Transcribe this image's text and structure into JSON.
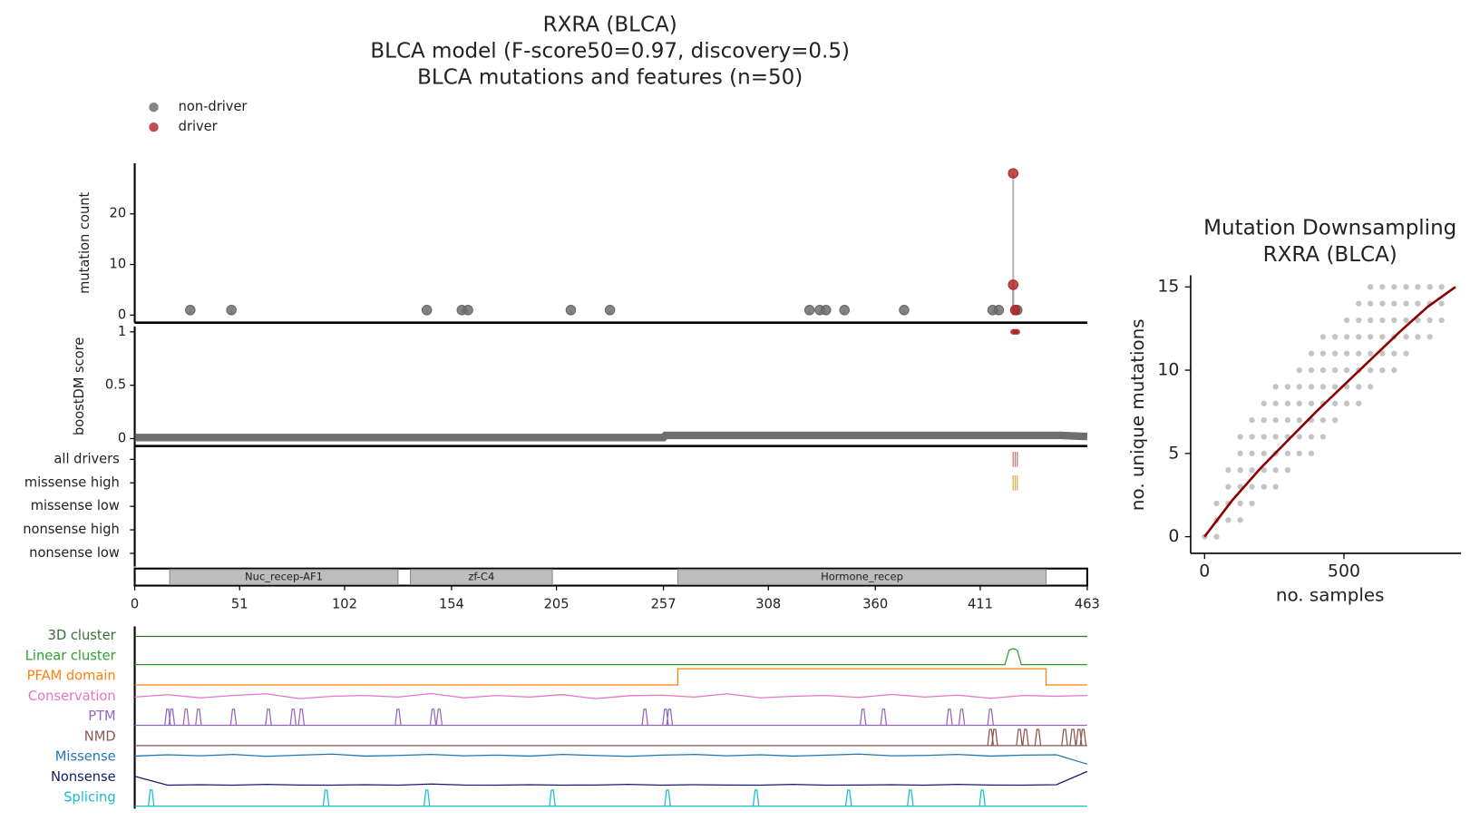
{
  "chart_data": [
    {
      "type": "lollipop",
      "title": [
        "RXRA (BLCA)",
        "BLCA model (F-score50=0.97, discovery=0.5)",
        "BLCA mutations and features (n=50)"
      ],
      "ylabel": "mutation count",
      "ylim": [
        -1.5,
        30
      ],
      "yticks": [
        0,
        10,
        20
      ],
      "series": [
        {
          "name": "non-driver",
          "color": "#666666",
          "x": [
            27,
            47,
            142,
            159,
            162,
            212,
            231,
            328,
            333,
            336,
            345,
            374,
            417,
            420,
            429
          ],
          "values": [
            1,
            1,
            1,
            1,
            1,
            1,
            1,
            1,
            1,
            1,
            1,
            1,
            1,
            1,
            1
          ]
        },
        {
          "name": "driver",
          "color": "#b22222",
          "x": [
            427,
            427,
            428
          ],
          "values": [
            28,
            6,
            1
          ]
        }
      ]
    },
    {
      "type": "strip",
      "ylabel": "boostDM score",
      "ylim": [
        -0.07,
        1.05
      ],
      "yticks": [
        0,
        0.5,
        1
      ],
      "series": [
        {
          "color": "#555555",
          "x": [
            0,
            50,
            100,
            150,
            200,
            257,
            258,
            300,
            350,
            400,
            450,
            463
          ],
          "values": [
            0.01,
            0.01,
            0.01,
            0.01,
            0.01,
            0.01,
            0.03,
            0.03,
            0.03,
            0.03,
            0.03,
            0.02
          ]
        },
        {
          "color": "#b22222",
          "x": [
            427,
            428,
            429
          ],
          "values": [
            1,
            1,
            1
          ]
        }
      ]
    },
    {
      "type": "events",
      "rows": [
        {
          "label": "all drivers",
          "color": "#c0787a",
          "x": [
            427,
            428,
            429
          ]
        },
        {
          "label": "missense high",
          "color": "#d9b04f",
          "x": [
            427,
            428,
            429
          ]
        },
        {
          "label": "missense low",
          "color": "#d9b04f",
          "x": []
        },
        {
          "label": "nonsense high",
          "color": "#7a7ac0",
          "x": []
        },
        {
          "label": "nonsense low",
          "color": "#7a7ac0",
          "x": []
        }
      ]
    },
    {
      "type": "domains",
      "xlim": [
        0,
        463
      ],
      "xticks": [
        0,
        51,
        102,
        154,
        205,
        257,
        308,
        360,
        411,
        463
      ],
      "domains": [
        {
          "name": "Nuc_recep-AF1",
          "start": 17,
          "end": 128
        },
        {
          "name": "zf-C4",
          "start": 134,
          "end": 203
        },
        {
          "name": "Hormone_recep",
          "start": 264,
          "end": 443
        }
      ]
    },
    {
      "type": "tracks",
      "tracks": [
        {
          "label": "3D cluster",
          "color": "#3a6b35",
          "x": [
            0,
            463
          ],
          "values": [
            0.5,
            0.5
          ]
        },
        {
          "label": "Linear cluster",
          "color": "#2ca02c",
          "x": [
            0,
            423,
            425,
            427,
            429,
            431,
            463
          ],
          "values": [
            0,
            0,
            0.9,
            1,
            0.9,
            0,
            0
          ]
        },
        {
          "label": "PFAM domain",
          "color": "#ff7f0e",
          "x": [
            0,
            264,
            264,
            443,
            443,
            463
          ],
          "values": [
            0,
            0,
            1,
            1,
            0,
            0
          ]
        },
        {
          "label": "Conservation",
          "color": "#e377c2",
          "x": [
            0,
            16,
            32,
            48,
            64,
            80,
            96,
            112,
            128,
            144,
            160,
            176,
            192,
            208,
            224,
            240,
            256,
            272,
            288,
            304,
            320,
            336,
            352,
            368,
            384,
            400,
            416,
            432,
            448,
            463
          ],
          "values": [
            0.5,
            0.65,
            0.45,
            0.6,
            0.7,
            0.4,
            0.55,
            0.6,
            0.5,
            0.72,
            0.45,
            0.6,
            0.5,
            0.65,
            0.4,
            0.58,
            0.62,
            0.5,
            0.7,
            0.45,
            0.55,
            0.6,
            0.48,
            0.66,
            0.5,
            0.62,
            0.42,
            0.6,
            0.55,
            0.6
          ]
        },
        {
          "label": "PTM",
          "color": "#9467bd",
          "spikes": [
            16,
            18,
            25,
            31,
            48,
            65,
            77,
            81,
            128,
            145,
            148,
            248,
            258,
            260,
            354,
            364,
            396,
            402,
            416
          ]
        },
        {
          "label": "NMD",
          "color": "#8c564b",
          "spikes": [
            416,
            418,
            430,
            433,
            439,
            452,
            456,
            459,
            461
          ]
        },
        {
          "label": "Missense",
          "color": "#1f77b4",
          "x": [
            0,
            16,
            32,
            48,
            64,
            80,
            96,
            112,
            128,
            144,
            160,
            176,
            192,
            208,
            224,
            240,
            256,
            272,
            288,
            304,
            320,
            336,
            352,
            368,
            384,
            400,
            416,
            432,
            448,
            463
          ],
          "values": [
            0.6,
            0.68,
            0.62,
            0.7,
            0.58,
            0.66,
            0.72,
            0.6,
            0.64,
            0.7,
            0.62,
            0.66,
            0.6,
            0.7,
            0.64,
            0.58,
            0.66,
            0.7,
            0.62,
            0.68,
            0.6,
            0.66,
            0.72,
            0.62,
            0.64,
            0.7,
            0.6,
            0.66,
            0.68,
            0.1
          ]
        },
        {
          "label": "Nonsense",
          "color": "#1a1a6e",
          "x": [
            0,
            16,
            32,
            48,
            64,
            80,
            96,
            112,
            128,
            144,
            160,
            176,
            192,
            208,
            224,
            240,
            256,
            272,
            288,
            304,
            320,
            336,
            352,
            368,
            384,
            400,
            416,
            432,
            448,
            463
          ],
          "values": [
            0.6,
            0.05,
            0.08,
            0.05,
            0.1,
            0.06,
            0.05,
            0.08,
            0.05,
            0.12,
            0.06,
            0.05,
            0.08,
            0.05,
            0.06,
            0.1,
            0.05,
            0.08,
            0.06,
            0.05,
            0.1,
            0.05,
            0.06,
            0.08,
            0.05,
            0.1,
            0.06,
            0.05,
            0.08,
            0.9
          ]
        },
        {
          "label": "Splicing",
          "color": "#17becf",
          "spikes": [
            8,
            93,
            142,
            203,
            259,
            302,
            347,
            377,
            412
          ]
        }
      ]
    },
    {
      "type": "scatter",
      "title": [
        "Mutation Downsampling",
        "RXRA (BLCA)"
      ],
      "xlabel": "no. samples",
      "ylabel": "no. unique mutations",
      "xlim": [
        -50,
        920
      ],
      "xticks": [
        0,
        500
      ],
      "ylim": [
        -1,
        15.7
      ],
      "yticks": [
        0,
        5,
        10,
        15
      ],
      "point_color": "#555555",
      "columns": [
        {
          "x": 0,
          "values": [
            0
          ]
        },
        {
          "x": 43,
          "values": [
            0,
            1,
            2
          ]
        },
        {
          "x": 85,
          "values": [
            1,
            2,
            3,
            4
          ]
        },
        {
          "x": 128,
          "values": [
            1,
            2,
            3,
            4,
            5,
            6
          ]
        },
        {
          "x": 170,
          "values": [
            2,
            3,
            4,
            5,
            6,
            7
          ]
        },
        {
          "x": 213,
          "values": [
            3,
            4,
            5,
            6,
            7,
            8
          ]
        },
        {
          "x": 255,
          "values": [
            3,
            4,
            5,
            6,
            7,
            8,
            9
          ]
        },
        {
          "x": 298,
          "values": [
            4,
            5,
            6,
            7,
            8,
            9
          ]
        },
        {
          "x": 340,
          "values": [
            5,
            6,
            7,
            8,
            9,
            10
          ]
        },
        {
          "x": 383,
          "values": [
            5,
            6,
            7,
            8,
            9,
            10,
            11
          ]
        },
        {
          "x": 425,
          "values": [
            6,
            7,
            8,
            9,
            10,
            11,
            12
          ]
        },
        {
          "x": 468,
          "values": [
            7,
            8,
            9,
            10,
            11,
            12
          ]
        },
        {
          "x": 510,
          "values": [
            8,
            9,
            10,
            11,
            12,
            13
          ]
        },
        {
          "x": 553,
          "values": [
            8,
            9,
            10,
            11,
            12,
            13,
            14
          ]
        },
        {
          "x": 595,
          "values": [
            9,
            10,
            11,
            12,
            13,
            14,
            15
          ]
        },
        {
          "x": 638,
          "values": [
            10,
            11,
            12,
            13,
            14,
            15
          ]
        },
        {
          "x": 680,
          "values": [
            10,
            11,
            12,
            13,
            14,
            15
          ]
        },
        {
          "x": 723,
          "values": [
            11,
            12,
            13,
            14,
            15
          ]
        },
        {
          "x": 765,
          "values": [
            12,
            13,
            14,
            15
          ]
        },
        {
          "x": 808,
          "values": [
            12,
            13,
            14,
            15
          ]
        },
        {
          "x": 850,
          "values": [
            13,
            14,
            15
          ]
        }
      ],
      "fit": {
        "color": "#8b0000",
        "x": [
          0,
          100,
          200,
          300,
          400,
          500,
          600,
          700,
          800,
          900
        ],
        "values": [
          0,
          2.2,
          4.1,
          5.8,
          7.5,
          9.1,
          10.7,
          12.3,
          13.8,
          15
        ]
      }
    }
  ]
}
